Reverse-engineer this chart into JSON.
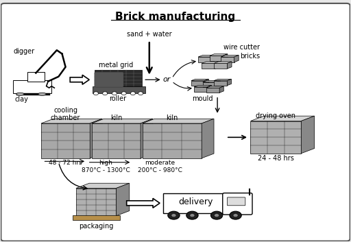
{
  "title": "Brick manufacturing",
  "background_color": "#f0f0f0",
  "panel_color": "#ffffff",
  "border_color": "#888888",
  "sand_water_label": "sand + water",
  "or_label": "or",
  "digger_label": "digger",
  "clay_label": "clay",
  "metal_grid_label": "metal grid",
  "roller_label": "roller",
  "wire_cutter_label": "wire cutter",
  "bricks_label": "bricks",
  "mould_label": "mould",
  "drying_oven_label": "drying oven",
  "drying_hrs_label": "24 - 48 hrs",
  "cooling_label": "cooling\nchamber",
  "kiln_label": "kiln",
  "hrs_label": "48 - 72 hrs",
  "high_label": "high",
  "high_temp_label": "870°C - 1300°C",
  "moderate_label": "moderate",
  "moderate_temp_label": "200°C - 980°C",
  "packaging_label": "packaging",
  "delivery_label": "delivery",
  "title_fontsize": 11,
  "label_fontsize": 7,
  "fig_bg": "#e8e8e8"
}
